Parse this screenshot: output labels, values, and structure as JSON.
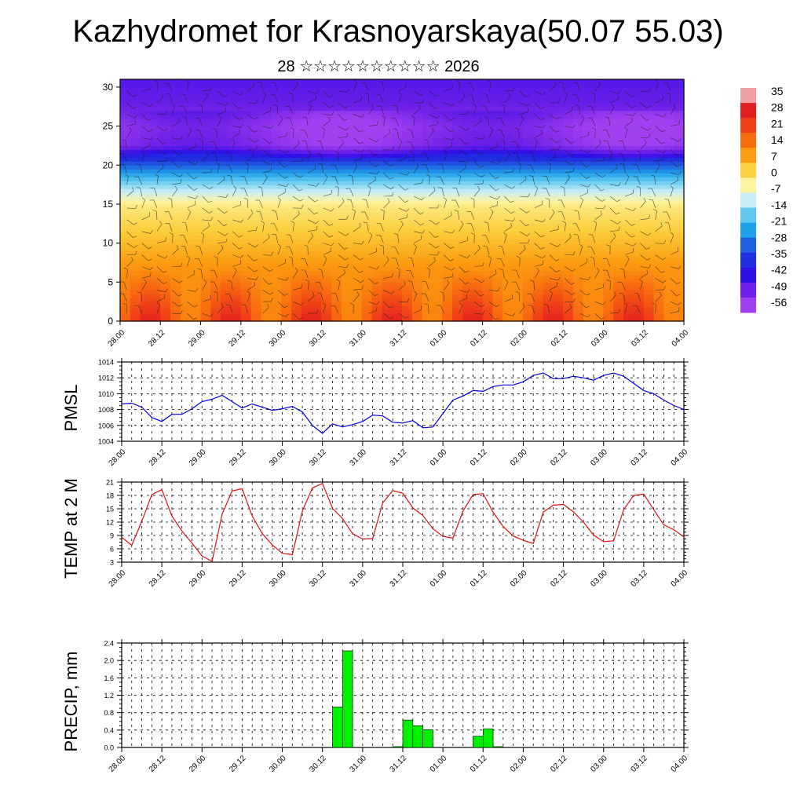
{
  "title": "Kazhydromet for Krasnoyarskaya(50.07 55.03)",
  "subtitle": "28 ☆☆☆☆☆☆☆☆☆☆ 2026",
  "time_ticks": [
    "28.00",
    "28.12",
    "29.00",
    "29.12",
    "30.00",
    "30.12",
    "31.00",
    "31.12",
    "01.00",
    "01.12",
    "02.00",
    "02.12",
    "03.00",
    "03.12",
    "04.00"
  ],
  "chart_data": [
    {
      "type": "heatmap",
      "title": "",
      "xlabel": "",
      "ylabel": "",
      "x": [
        "28.00",
        "28.12",
        "29.00",
        "29.12",
        "30.00",
        "30.12",
        "31.00",
        "31.12",
        "01.00",
        "01.12",
        "02.00",
        "02.12",
        "03.00",
        "03.12",
        "04.00"
      ],
      "ylim": [
        0,
        31
      ],
      "yticks": [
        0,
        5,
        10,
        15,
        20,
        25,
        30
      ],
      "overlay": "wind barbs",
      "colorbar": {
        "labels": [
          "35",
          "28",
          "21",
          "14",
          "7",
          "0",
          "-7",
          "-14",
          "-21",
          "-28",
          "-35",
          "-42",
          "-49",
          "-56"
        ],
        "colors": [
          "#f0a0a0",
          "#e02020",
          "#f04018",
          "#f86c10",
          "#fc9c10",
          "#fcd040",
          "#fcf4a0",
          "#c8ecf8",
          "#60c8f0",
          "#20a0e8",
          "#2060e0",
          "#2030e0",
          "#3010e8",
          "#7020e8",
          "#a040f0"
        ]
      },
      "profile": {
        "z": [
          0,
          5,
          10,
          15,
          18,
          20,
          22.5,
          25,
          28,
          31
        ],
        "value": [
          22,
          14,
          6,
          -2,
          -18,
          -32,
          -56,
          -58,
          -52,
          -50
        ]
      }
    },
    {
      "type": "line",
      "ylabel": "PMSL",
      "ylim": [
        1004,
        1014
      ],
      "yticks": [
        1004,
        1006,
        1008,
        1010,
        1012,
        1014
      ],
      "color": "#0000e0",
      "x_hours": [
        0,
        3,
        6,
        9,
        12,
        15,
        18,
        21,
        24,
        27,
        30,
        33,
        36,
        39,
        42,
        45,
        48,
        51,
        54,
        57,
        60,
        63,
        66,
        69,
        72,
        75,
        78,
        81,
        84,
        87,
        90,
        93,
        96,
        99,
        102,
        105,
        108,
        111,
        114,
        117,
        120,
        123,
        126,
        129,
        132,
        135,
        138,
        141,
        144,
        147,
        150,
        153,
        156,
        159,
        162,
        165,
        168
      ],
      "values": [
        1008.7,
        1008.8,
        1008.3,
        1007.0,
        1006.5,
        1007.4,
        1007.4,
        1008.1,
        1009.0,
        1009.3,
        1009.8,
        1009.0,
        1008.2,
        1008.7,
        1008.3,
        1007.9,
        1008.1,
        1008.4,
        1007.7,
        1006.0,
        1005.0,
        1006.2,
        1005.8,
        1006.1,
        1006.5,
        1007.3,
        1007.2,
        1006.4,
        1006.3,
        1006.6,
        1005.7,
        1005.8,
        1007.5,
        1009.2,
        1009.7,
        1010.4,
        1010.3,
        1010.9,
        1011.1,
        1011.1,
        1011.5,
        1012.3,
        1012.6,
        1011.9,
        1011.9,
        1012.2,
        1012.0,
        1011.7,
        1012.3,
        1012.6,
        1012.2,
        1011.3,
        1010.4,
        1010.0,
        1009.2,
        1008.5,
        1008.0
      ]
    },
    {
      "type": "line",
      "ylabel": "TEMP at 2 M",
      "ylim": [
        3,
        21
      ],
      "yticks": [
        3,
        6,
        9,
        12,
        15,
        18,
        21
      ],
      "color": "#e01010",
      "x_hours": [
        0,
        3,
        6,
        9,
        12,
        15,
        18,
        21,
        24,
        27,
        30,
        33,
        36,
        39,
        42,
        45,
        48,
        51,
        54,
        57,
        60,
        63,
        66,
        69,
        72,
        75,
        78,
        81,
        84,
        87,
        90,
        93,
        96,
        99,
        102,
        105,
        108,
        111,
        114,
        117,
        120,
        123,
        126,
        129,
        132,
        135,
        138,
        141,
        144,
        147,
        150,
        153,
        156,
        159,
        162,
        165,
        168
      ],
      "values": [
        8.6,
        6.8,
        12.2,
        18.2,
        19.3,
        13.4,
        10.0,
        7.3,
        4.4,
        3.2,
        13.8,
        19.0,
        19.5,
        13.4,
        9.4,
        6.9,
        5.0,
        4.7,
        14.5,
        19.7,
        20.7,
        15.1,
        12.8,
        9.4,
        8.2,
        8.3,
        16.3,
        19.1,
        18.5,
        15.2,
        13.5,
        10.5,
        8.8,
        8.4,
        14.5,
        18.2,
        18.4,
        14.2,
        11.0,
        8.9,
        7.9,
        7.2,
        14.3,
        15.8,
        16.0,
        14.3,
        12.0,
        9.1,
        7.6,
        7.8,
        14.8,
        18.0,
        18.3,
        14.8,
        11.4,
        10.3,
        8.7
      ]
    },
    {
      "type": "bar",
      "ylabel": "PRECIP, mm",
      "ylim": [
        0,
        2.4
      ],
      "yticks": [
        "0.0",
        "0.4",
        "0.8",
        "1.2",
        "1.6",
        "2.0",
        "2.4"
      ],
      "color": "#00f000",
      "bar_width_hours": 3,
      "bars": [
        {
          "start_h": 63,
          "value": 0.93
        },
        {
          "start_h": 66,
          "value": 2.22
        },
        {
          "start_h": 81,
          "value": 0.02
        },
        {
          "start_h": 84,
          "value": 0.63
        },
        {
          "start_h": 87,
          "value": 0.5
        },
        {
          "start_h": 90,
          "value": 0.41
        },
        {
          "start_h": 105,
          "value": 0.26
        },
        {
          "start_h": 108,
          "value": 0.43
        },
        {
          "start_h": 111,
          "value": 0.02
        }
      ]
    }
  ]
}
